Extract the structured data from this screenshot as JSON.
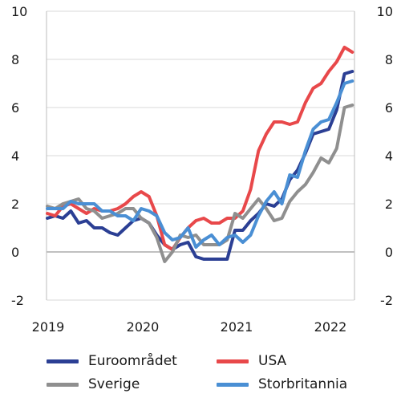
{
  "chart_data": {
    "type": "line",
    "title": "",
    "xlabel": "",
    "ylabel": "",
    "x_start": "2019-01",
    "x_end": "2022-04",
    "x_ticks": [
      "2019",
      "2020",
      "2021",
      "2022"
    ],
    "ylim": [
      -2,
      10
    ],
    "y_ticks": [
      -2,
      0,
      2,
      4,
      6,
      8,
      10
    ],
    "y_tick_labels": [
      "-2",
      "0",
      "2",
      "4",
      "6",
      "8",
      "10"
    ],
    "grid": "horizontal",
    "legend_placement": "bottom",
    "series": [
      {
        "name": "Euroområdet",
        "color": "#2b3f94",
        "values": [
          1.4,
          1.5,
          1.4,
          1.7,
          1.2,
          1.3,
          1.0,
          1.0,
          0.8,
          0.7,
          1.0,
          1.3,
          1.4,
          1.2,
          0.7,
          0.3,
          0.1,
          0.3,
          0.4,
          -0.2,
          -0.3,
          -0.3,
          -0.3,
          -0.3,
          0.9,
          0.9,
          1.3,
          1.6,
          2.0,
          1.9,
          2.2,
          3.0,
          3.4,
          4.1,
          4.9,
          5.0,
          5.1,
          5.9,
          7.4,
          7.5
        ]
      },
      {
        "name": "USA",
        "color": "#e8484a",
        "values": [
          1.6,
          1.5,
          1.9,
          2.0,
          1.8,
          1.6,
          1.8,
          1.7,
          1.7,
          1.8,
          2.0,
          2.3,
          2.5,
          2.3,
          1.5,
          0.3,
          0.1,
          0.6,
          1.0,
          1.3,
          1.4,
          1.2,
          1.2,
          1.4,
          1.4,
          1.7,
          2.6,
          4.2,
          4.9,
          5.4,
          5.4,
          5.3,
          5.4,
          6.2,
          6.8,
          7.0,
          7.5,
          7.9,
          8.5,
          8.3
        ]
      },
      {
        "name": "Sverige",
        "color": "#8f8f8f",
        "values": [
          1.9,
          1.8,
          2.0,
          2.1,
          2.2,
          1.8,
          1.7,
          1.4,
          1.5,
          1.6,
          1.8,
          1.8,
          1.4,
          1.2,
          0.6,
          -0.4,
          0.0,
          0.7,
          0.6,
          0.7,
          0.3,
          0.3,
          0.3,
          0.5,
          1.6,
          1.4,
          1.8,
          2.2,
          1.8,
          1.3,
          1.4,
          2.1,
          2.5,
          2.8,
          3.3,
          3.9,
          3.7,
          4.3,
          6.0,
          6.1
        ]
      },
      {
        "name": "Storbritannia",
        "color": "#4a8fd4",
        "values": [
          1.8,
          1.8,
          1.8,
          2.1,
          2.0,
          2.0,
          2.0,
          1.7,
          1.7,
          1.5,
          1.5,
          1.3,
          1.8,
          1.7,
          1.5,
          0.8,
          0.5,
          0.6,
          1.0,
          0.2,
          0.5,
          0.7,
          0.3,
          0.6,
          0.7,
          0.4,
          0.7,
          1.5,
          2.1,
          2.5,
          2.0,
          3.2,
          3.1,
          4.2,
          5.1,
          5.4,
          5.5,
          6.2,
          7.0,
          7.1
        ]
      }
    ]
  }
}
